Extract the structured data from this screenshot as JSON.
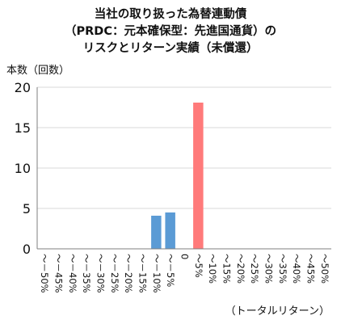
{
  "chart_data": {
    "type": "bar",
    "title_lines": [
      "当社の取り扱った為替連動債",
      "（PRDC：元本確保型：先進国通貨）の",
      "リスクとリターン実績（未償還）"
    ],
    "ylabel": "本数（回数）",
    "xlabel": "（トータルリターン）",
    "ylim": [
      0,
      20
    ],
    "yticks": [
      "0",
      "5",
      "10",
      "15",
      "20"
    ],
    "grid": true,
    "categories": [
      "～－50%",
      "～－45%",
      "～－40%",
      "～－35%",
      "～－30%",
      "～－25%",
      "～－20%",
      "～－15%",
      "～－10%",
      "～－5%",
      "0",
      "～5%",
      "～10%",
      "～15%",
      "～20%",
      "～25%",
      "～30%",
      "～35%",
      "～40%",
      "～45%",
      "～50%"
    ],
    "values": [
      0,
      0,
      0,
      0,
      0,
      0,
      0,
      0,
      4.1,
      4.5,
      0,
      18.1,
      0,
      0,
      0,
      0,
      0,
      0,
      0,
      0,
      0
    ],
    "bar_colors": {
      "negative": "#5b9bd5",
      "positive": "#ff7a7a"
    },
    "axis_color": "#7f7f7f",
    "grid_color": "#d9d9d9"
  }
}
